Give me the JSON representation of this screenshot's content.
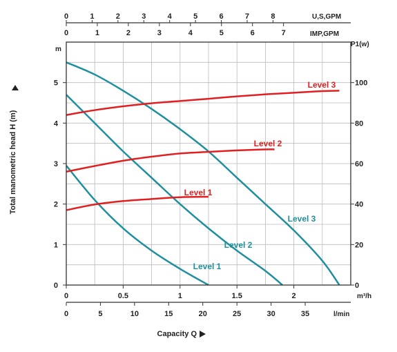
{
  "chart_data": {
    "type": "line",
    "head_axis": {
      "label": "Total manometric head H (m)",
      "unit": "m",
      "range": [
        0,
        6
      ],
      "ticks": [
        "0",
        "1",
        "2",
        "3",
        "4",
        "5"
      ]
    },
    "power_axis": {
      "unit": "P1(w)",
      "range": [
        0,
        100
      ],
      "ticks": [
        "0",
        "20",
        "40",
        "60",
        "80",
        "100"
      ]
    },
    "flow_axes": {
      "m3h": {
        "unit": "m³/h",
        "range": [
          0,
          2.5
        ],
        "ticks": [
          "0",
          "0.5",
          "1",
          "1.5",
          "2"
        ]
      },
      "lmin": {
        "unit": "l/min",
        "range": [
          0,
          41.67
        ],
        "ticks": [
          "0",
          "5",
          "10",
          "15",
          "20",
          "25",
          "30",
          "35"
        ]
      },
      "us_gpm": {
        "unit": "U,S,GPM",
        "ticks": [
          "0",
          "1",
          "2",
          "3",
          "4",
          "5",
          "6",
          "7",
          "8"
        ]
      },
      "imp_gpm": {
        "unit": "IMP,GPM",
        "ticks": [
          "0",
          "1",
          "2",
          "3",
          "4",
          "5",
          "6",
          "7"
        ]
      }
    },
    "xlabel": "Capacity Q",
    "grid": true,
    "head_curves": [
      {
        "name": "Level 1",
        "color": "#1f8f9e",
        "x": [
          0,
          0.25,
          0.5,
          0.75,
          1.0,
          1.25
        ],
        "y": [
          2.95,
          2.1,
          1.4,
          0.85,
          0.4,
          0.0
        ]
      },
      {
        "name": "Level 2",
        "color": "#1f8f9e",
        "x": [
          0,
          0.25,
          0.5,
          0.75,
          1.0,
          1.25,
          1.5,
          1.75,
          1.9
        ],
        "y": [
          4.7,
          4.0,
          3.3,
          2.65,
          2.0,
          1.4,
          0.85,
          0.35,
          0.0
        ]
      },
      {
        "name": "Level 3",
        "color": "#1f8f9e",
        "x": [
          0,
          0.25,
          0.5,
          0.75,
          1.0,
          1.25,
          1.5,
          1.75,
          2.0,
          2.25,
          2.4
        ],
        "y": [
          5.5,
          5.2,
          4.8,
          4.35,
          3.85,
          3.3,
          2.65,
          2.0,
          1.35,
          0.6,
          0.0
        ]
      }
    ],
    "power_curves": [
      {
        "name": "Level 1",
        "color": "#e02020",
        "x": [
          0,
          0.25,
          0.5,
          0.75,
          1.0,
          1.25
        ],
        "y": [
          37,
          39.8,
          41.5,
          42.5,
          43.4,
          43.6
        ]
      },
      {
        "name": "Level 2",
        "color": "#e02020",
        "x": [
          0,
          0.25,
          0.5,
          0.75,
          1.0,
          1.25,
          1.5,
          1.75,
          1.83
        ],
        "y": [
          56,
          58.8,
          61.4,
          63.4,
          65,
          65.8,
          66.5,
          67,
          67
        ]
      },
      {
        "name": "Level 3",
        "color": "#e02020",
        "x": [
          0,
          0.25,
          0.5,
          0.75,
          1.0,
          1.25,
          1.5,
          1.75,
          2.0,
          2.25,
          2.4
        ],
        "y": [
          84,
          86.4,
          88.3,
          89.8,
          90.9,
          92,
          93.2,
          94.2,
          95,
          95.8,
          96
        ]
      }
    ]
  }
}
